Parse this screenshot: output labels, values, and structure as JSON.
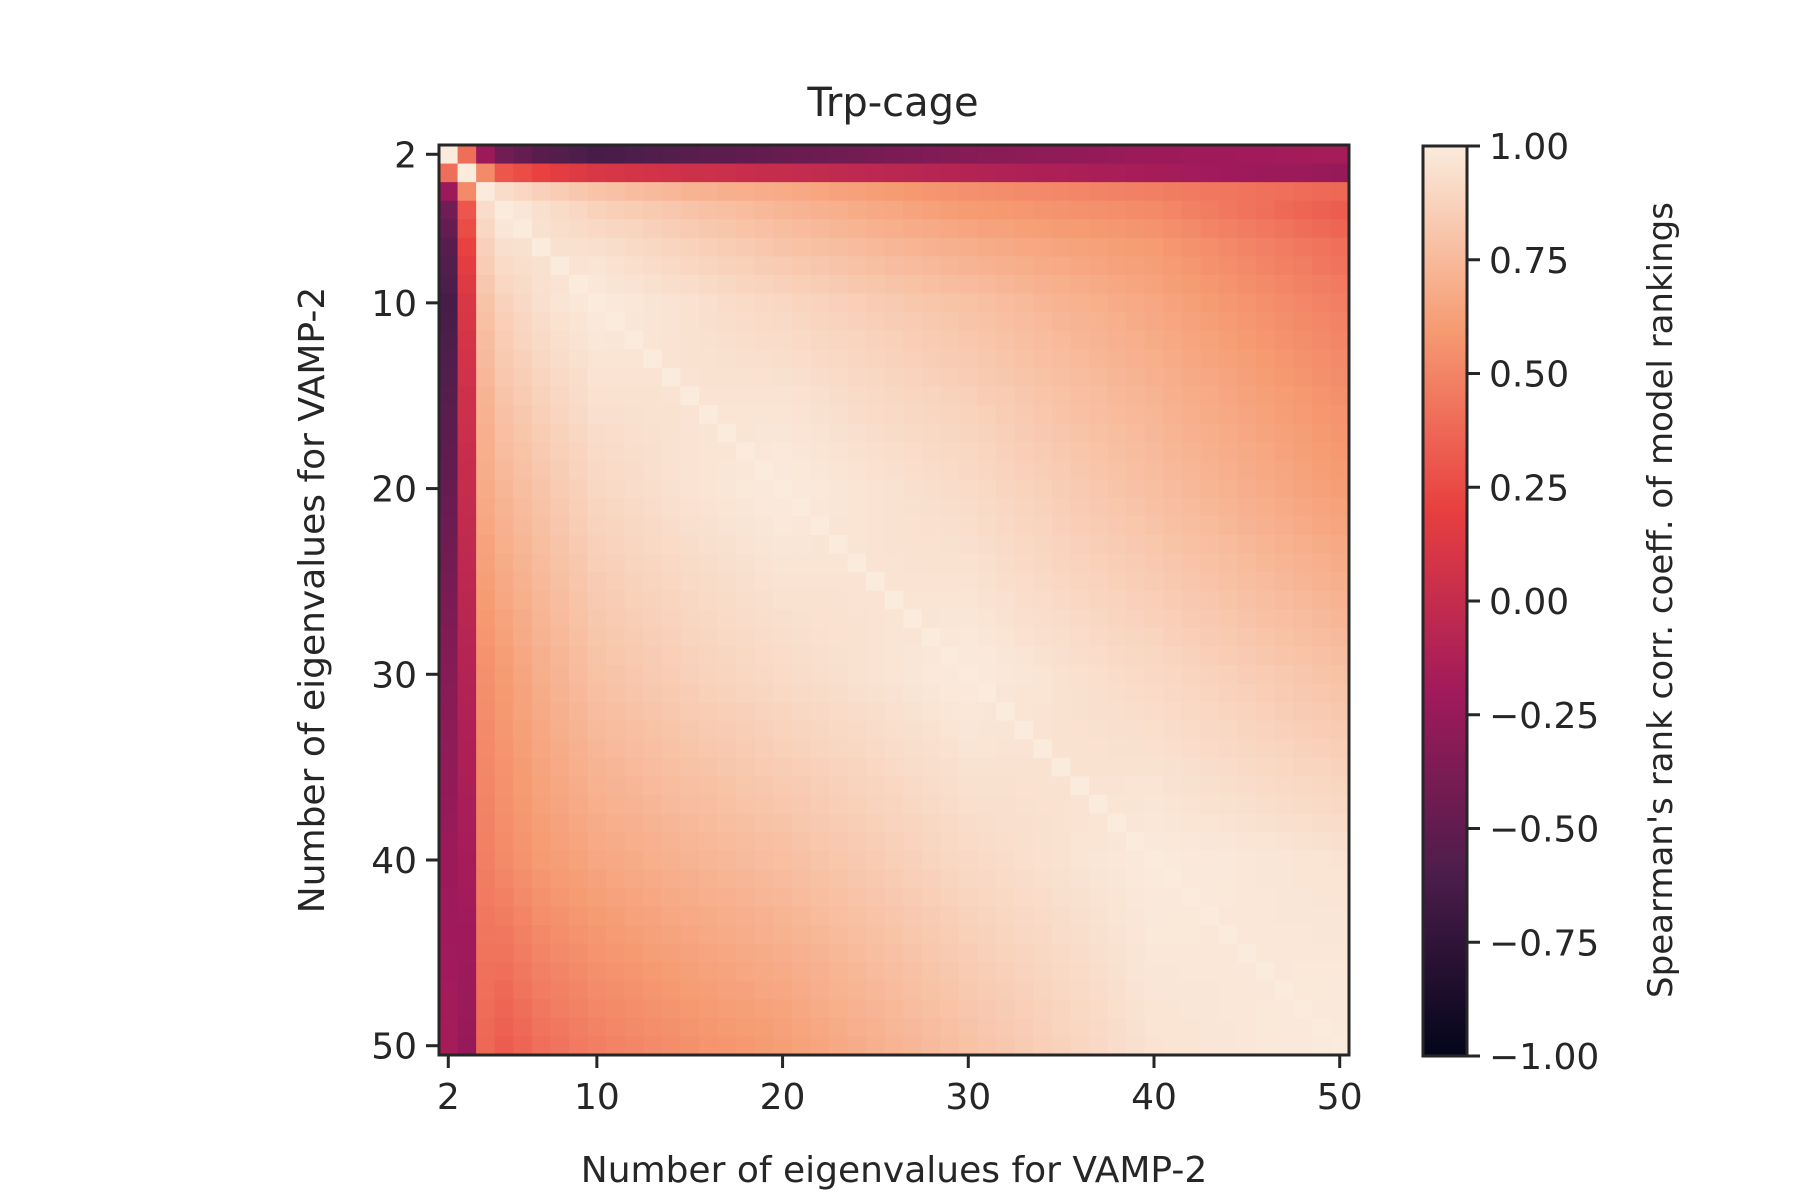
{
  "chart_data": {
    "type": "heatmap",
    "title": "Trp-cage",
    "xlabel": "Number of eigenvalues for VAMP-2",
    "ylabel": "Number of eigenvalues for VAMP-2",
    "x_range": [
      2,
      50
    ],
    "y_range": [
      2,
      50
    ],
    "x_ticks": [
      2,
      10,
      20,
      30,
      40,
      50
    ],
    "y_ticks": [
      2,
      10,
      20,
      30,
      40,
      50
    ],
    "x_tick_labels": [
      "2",
      "10",
      "20",
      "30",
      "40",
      "50"
    ],
    "y_tick_labels": [
      "2",
      "10",
      "20",
      "30",
      "40",
      "50"
    ],
    "y_axis_direction": "top-to-bottom",
    "symmetric": true,
    "colorbar": {
      "label": "Spearman's rank corr. coeff. of model rankings",
      "range": [
        -1.0,
        1.0
      ],
      "ticks": [
        1.0,
        0.75,
        0.5,
        0.25,
        0.0,
        -0.25,
        -0.5,
        -0.75,
        -1.0
      ],
      "tick_labels": [
        "1.00",
        "0.75",
        "0.50",
        "0.25",
        "0.00",
        "−0.25",
        "−0.50",
        "−0.75",
        "−1.00"
      ],
      "colormap": "rocket",
      "colormap_stops": [
        "#03051a",
        "#4c1d4b",
        "#a11a5b",
        "#e83f3f",
        "#f69c73",
        "#faebdd"
      ]
    },
    "estimated_values": {
      "k_ticks": [
        2,
        3,
        4,
        5,
        7,
        10,
        15,
        20,
        30,
        40,
        50
      ],
      "row_2": [
        1.0,
        0.4,
        -0.25,
        -0.45,
        -0.6,
        -0.65,
        -0.55,
        -0.45,
        -0.3,
        -0.15,
        -0.05
      ],
      "row_3": [
        0.4,
        1.0,
        0.55,
        0.3,
        0.2,
        0.12,
        0.05,
        0.0,
        -0.1,
        -0.2,
        -0.3
      ],
      "row_4": [
        -0.2,
        0.5,
        0.95,
        0.9,
        0.85,
        0.8,
        0.72,
        0.7,
        0.55,
        0.5,
        0.4
      ],
      "row_5": [
        -0.4,
        0.3,
        0.95,
        1.0,
        0.95,
        0.9,
        0.82,
        0.75,
        0.6,
        0.55,
        0.35
      ],
      "row_10": [
        -0.6,
        0.1,
        0.8,
        0.85,
        0.95,
        1.0,
        0.95,
        0.9,
        0.8,
        0.65,
        0.45
      ],
      "row_20": [
        -0.5,
        0.0,
        0.65,
        0.72,
        0.8,
        0.9,
        0.97,
        1.0,
        0.92,
        0.75,
        0.6
      ],
      "row_30": [
        -0.35,
        -0.1,
        0.55,
        0.6,
        0.7,
        0.78,
        0.87,
        0.92,
        1.0,
        0.92,
        0.8
      ],
      "row_40": [
        -0.3,
        -0.15,
        0.45,
        0.5,
        0.6,
        0.66,
        0.74,
        0.8,
        0.9,
        1.0,
        0.97
      ],
      "row_50": [
        -0.3,
        -0.2,
        0.35,
        0.3,
        0.42,
        0.5,
        0.58,
        0.62,
        0.78,
        0.95,
        1.0
      ]
    }
  }
}
